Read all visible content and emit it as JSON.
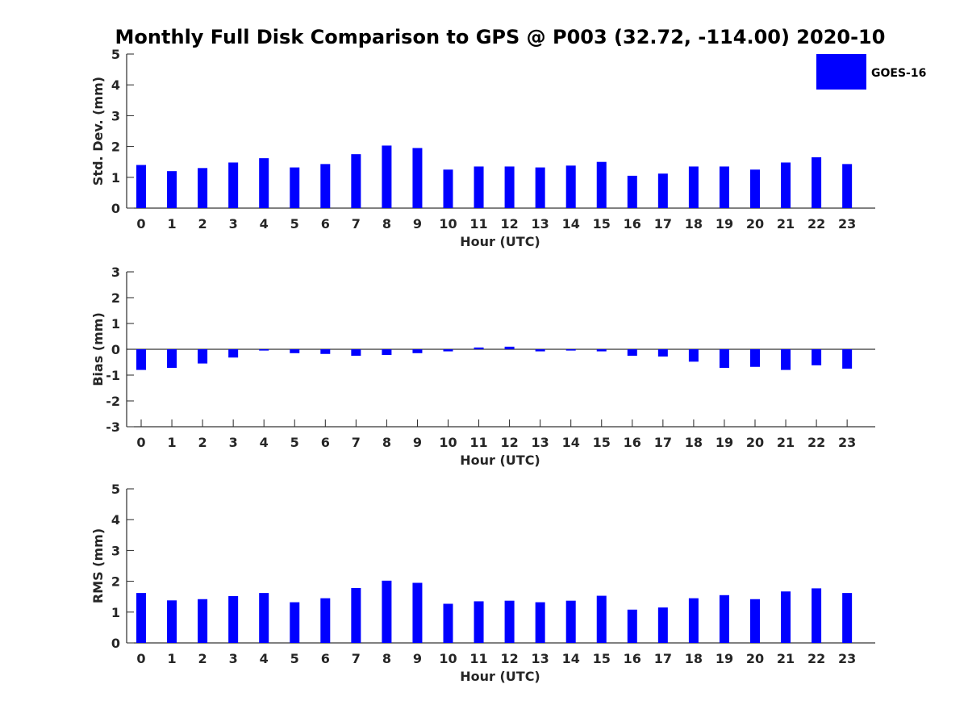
{
  "chart_data": {
    "type": "bar",
    "title": "Monthly Full Disk Comparison to GPS @ P003 (32.72, -114.00) 2020-10",
    "legend": {
      "entries": [
        "GOES-16"
      ],
      "placement": "top-right"
    },
    "categories": [
      "0",
      "1",
      "2",
      "3",
      "4",
      "5",
      "6",
      "7",
      "8",
      "9",
      "10",
      "11",
      "12",
      "13",
      "14",
      "15",
      "16",
      "17",
      "18",
      "19",
      "20",
      "21",
      "22",
      "23"
    ],
    "series_color": "#0000ff",
    "grid": false,
    "panels": [
      {
        "ylabel": "Std. Dev. (mm)",
        "xlabel": "Hour (UTC)",
        "ylim": [
          0,
          5
        ],
        "yticks": [
          "0",
          "1",
          "2",
          "3",
          "4",
          "5"
        ],
        "series": [
          {
            "name": "GOES-16",
            "values": [
              1.4,
              1.2,
              1.3,
              1.48,
              1.62,
              1.32,
              1.43,
              1.75,
              2.03,
              1.95,
              1.25,
              1.35,
              1.35,
              1.32,
              1.38,
              1.5,
              1.05,
              1.12,
              1.35,
              1.35,
              1.25,
              1.48,
              1.65,
              1.43
            ]
          }
        ]
      },
      {
        "ylabel": "Bias (mm)",
        "xlabel": "Hour (UTC)",
        "ylim": [
          -3,
          3
        ],
        "yticks": [
          "-3",
          "-2",
          "-1",
          "0",
          "1",
          "2",
          "3"
        ],
        "series": [
          {
            "name": "GOES-16",
            "values": [
              -0.8,
              -0.72,
              -0.55,
              -0.32,
              -0.05,
              -0.15,
              -0.18,
              -0.25,
              -0.22,
              -0.15,
              -0.08,
              0.07,
              0.1,
              -0.08,
              -0.05,
              -0.08,
              -0.25,
              -0.28,
              -0.48,
              -0.72,
              -0.68,
              -0.8,
              -0.62,
              -0.75
            ]
          }
        ]
      },
      {
        "ylabel": "RMS (mm)",
        "xlabel": "Hour (UTC)",
        "ylim": [
          0,
          5
        ],
        "yticks": [
          "0",
          "1",
          "2",
          "3",
          "4",
          "5"
        ],
        "series": [
          {
            "name": "GOES-16",
            "values": [
              1.62,
              1.38,
              1.42,
              1.52,
              1.62,
              1.32,
              1.45,
              1.78,
              2.02,
              1.95,
              1.27,
              1.35,
              1.37,
              1.32,
              1.37,
              1.53,
              1.08,
              1.15,
              1.45,
              1.55,
              1.42,
              1.67,
              1.77,
              1.62
            ]
          }
        ]
      }
    ]
  }
}
